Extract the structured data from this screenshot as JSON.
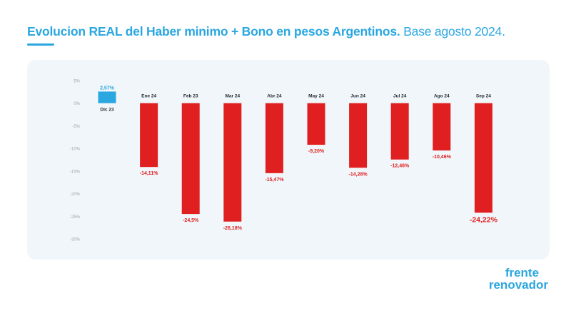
{
  "title": {
    "bold": "Evolucion REAL del Haber minimo + Bono en pesos Argentinos.",
    "light": "Base agosto 2024."
  },
  "logo": {
    "line1": "frente",
    "line2": "renovador"
  },
  "colors": {
    "accent": "#2aa7e0",
    "positive_bar": "#2aa7e0",
    "negative_bar": "#e02020",
    "panel_bg": "#f1f6fa",
    "tick_text": "#9aa7b2",
    "category_text": "#1f2a33"
  },
  "chart_data": {
    "type": "bar",
    "title": "Evolucion REAL del Haber minimo + Bono en pesos Argentinos. Base agosto 2024.",
    "xlabel": "",
    "ylabel": "",
    "ylim": [
      -30,
      5
    ],
    "grid": false,
    "yticks": [
      5,
      0,
      -5,
      -10,
      -15,
      -20,
      -25,
      -30
    ],
    "ytick_labels": [
      "5%",
      "0%",
      "-5%",
      "-10%",
      "-15%",
      "-20%",
      "-25%",
      "-30%"
    ],
    "categories": [
      "Dic 23",
      "Ene 24",
      "Feb 23",
      "Mar 24",
      "Abr 24",
      "May 24",
      "Jun 24",
      "Jul 24",
      "Ago 24",
      "Sep 24"
    ],
    "values": [
      2.57,
      -14.11,
      -24.5,
      -26.18,
      -15.47,
      -9.2,
      -14.28,
      -12.46,
      -10.46,
      -24.22
    ],
    "labels": [
      "2,57%",
      "-14,11%",
      "-24,5%",
      "-26,18%",
      "-15,47%",
      "-9,20%",
      "-14,28%",
      "-12,46%",
      "-10,46%",
      "-24,22%"
    ],
    "highlight_last": true
  }
}
